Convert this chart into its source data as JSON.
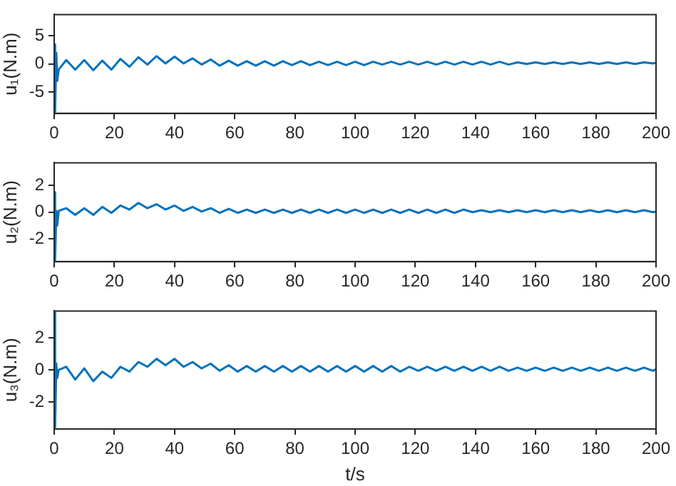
{
  "chart_data": [
    {
      "type": "line",
      "ylabel": "u₁(N.m)",
      "x": [
        0,
        0.2,
        0.4,
        0.7,
        1,
        1.5,
        4,
        7,
        10,
        13,
        16,
        19,
        22,
        25,
        28,
        31,
        34,
        37,
        40,
        43,
        46,
        49,
        52,
        55,
        58,
        61,
        64,
        67,
        70,
        73,
        76,
        79,
        82,
        85,
        88,
        91,
        94,
        97,
        100,
        103,
        106,
        109,
        112,
        115,
        118,
        121,
        124,
        127,
        130,
        133,
        136,
        139,
        142,
        145,
        148,
        151,
        154,
        157,
        160,
        163,
        166,
        169,
        172,
        175,
        178,
        181,
        184,
        187,
        190,
        193,
        196,
        199,
        200
      ],
      "series": [
        {
          "color": "#0072bd",
          "values": [
            0,
            3.5,
            -8.5,
            2,
            -3,
            -1,
            0.7,
            -1.0,
            0.7,
            -1.1,
            0.6,
            -1.0,
            0.9,
            -0.5,
            1.2,
            -0.1,
            1.4,
            0.1,
            1.3,
            0.1,
            1.0,
            -0.1,
            0.8,
            -0.3,
            0.6,
            -0.3,
            0.5,
            -0.3,
            0.5,
            -0.3,
            0.5,
            -0.2,
            0.5,
            -0.2,
            0.4,
            -0.2,
            0.4,
            -0.2,
            0.4,
            -0.2,
            0.4,
            -0.1,
            0.4,
            -0.1,
            0.4,
            -0.1,
            0.4,
            -0.1,
            0.4,
            -0.1,
            0.4,
            -0.1,
            0.4,
            -0.1,
            0.4,
            -0.1,
            0.3,
            0,
            0.3,
            0,
            0.3,
            0,
            0.3,
            0,
            0.3,
            0,
            0.3,
            0,
            0.3,
            0,
            0.3,
            0.1,
            0.2
          ]
        }
      ],
      "xlim": [
        0,
        200
      ],
      "xticks": [
        0,
        20,
        40,
        60,
        80,
        100,
        120,
        140,
        160,
        180,
        200
      ],
      "ylim": [
        -8.8,
        8.8
      ],
      "yticks": [
        -5,
        0,
        5
      ],
      "grid": false
    },
    {
      "type": "line",
      "ylabel": "u₂(N.m)",
      "x": [
        0,
        0.2,
        0.4,
        0.7,
        1,
        1.5,
        4,
        7,
        10,
        13,
        16,
        19,
        22,
        25,
        28,
        31,
        34,
        37,
        40,
        43,
        46,
        49,
        52,
        55,
        58,
        61,
        64,
        67,
        70,
        73,
        76,
        79,
        82,
        85,
        88,
        91,
        94,
        97,
        100,
        103,
        106,
        109,
        112,
        115,
        118,
        121,
        124,
        127,
        130,
        133,
        136,
        139,
        142,
        145,
        148,
        151,
        154,
        157,
        160,
        163,
        166,
        169,
        172,
        175,
        178,
        181,
        184,
        187,
        190,
        193,
        196,
        199,
        200
      ],
      "series": [
        {
          "color": "#0072bd",
          "values": [
            0,
            1.5,
            -3.6,
            0.1,
            -1,
            0.1,
            0.3,
            -0.2,
            0.3,
            -0.2,
            0.4,
            -0.05,
            0.5,
            0.2,
            0.7,
            0.3,
            0.6,
            0.2,
            0.5,
            0.1,
            0.4,
            0.05,
            0.3,
            -0.05,
            0.25,
            -0.05,
            0.2,
            -0.05,
            0.2,
            -0.05,
            0.2,
            -0.05,
            0.2,
            -0.05,
            0.2,
            -0.05,
            0.2,
            -0.05,
            0.2,
            -0.05,
            0.2,
            -0.05,
            0.2,
            -0.05,
            0.2,
            -0.05,
            0.2,
            -0.05,
            0.2,
            -0.05,
            0.2,
            0,
            0.15,
            0,
            0.15,
            0,
            0.15,
            0,
            0.15,
            0,
            0.15,
            0,
            0.15,
            0,
            0.15,
            0,
            0.15,
            0,
            0.15,
            0,
            0.15,
            0,
            0.05
          ]
        }
      ],
      "xlim": [
        0,
        200
      ],
      "xticks": [
        0,
        20,
        40,
        60,
        80,
        100,
        120,
        140,
        160,
        180,
        200
      ],
      "ylim": [
        -3.7,
        3.7
      ],
      "yticks": [
        -2,
        0,
        2
      ],
      "grid": false
    },
    {
      "type": "line",
      "ylabel": "u₃(N.m)",
      "xlabel": "t/s",
      "x": [
        0,
        0.2,
        0.4,
        0.7,
        1,
        1.5,
        4,
        7,
        10,
        13,
        16,
        19,
        22,
        25,
        28,
        31,
        34,
        37,
        40,
        43,
        46,
        49,
        52,
        55,
        58,
        61,
        64,
        67,
        70,
        73,
        76,
        79,
        82,
        85,
        88,
        91,
        94,
        97,
        100,
        103,
        106,
        109,
        112,
        115,
        118,
        121,
        124,
        127,
        130,
        133,
        136,
        139,
        142,
        145,
        148,
        151,
        154,
        157,
        160,
        163,
        166,
        169,
        172,
        175,
        178,
        181,
        184,
        187,
        190,
        193,
        196,
        199,
        200
      ],
      "series": [
        {
          "color": "#0072bd",
          "values": [
            0,
            3.6,
            -3.6,
            0.4,
            -0.5,
            0,
            0.2,
            -0.6,
            0.1,
            -0.7,
            -0.1,
            -0.5,
            0.2,
            -0.1,
            0.5,
            0.2,
            0.7,
            0.3,
            0.7,
            0.2,
            0.5,
            0.1,
            0.4,
            -0.05,
            0.3,
            -0.1,
            0.25,
            -0.1,
            0.25,
            -0.1,
            0.25,
            -0.1,
            0.25,
            -0.1,
            0.25,
            -0.1,
            0.25,
            -0.1,
            0.25,
            -0.1,
            0.25,
            -0.1,
            0.25,
            -0.1,
            0.2,
            -0.05,
            0.2,
            -0.05,
            0.2,
            -0.05,
            0.2,
            -0.05,
            0.2,
            -0.05,
            0.2,
            -0.05,
            0.15,
            -0.05,
            0.15,
            -0.05,
            0.15,
            -0.05,
            0.15,
            -0.05,
            0.15,
            -0.05,
            0.15,
            -0.05,
            0.15,
            -0.05,
            0.15,
            -0.05,
            0.05
          ]
        }
      ],
      "xlim": [
        0,
        200
      ],
      "xticks": [
        0,
        20,
        40,
        60,
        80,
        100,
        120,
        140,
        160,
        180,
        200
      ],
      "ylim": [
        -3.7,
        3.7
      ],
      "yticks": [
        -2,
        0,
        2
      ],
      "grid": false
    }
  ]
}
